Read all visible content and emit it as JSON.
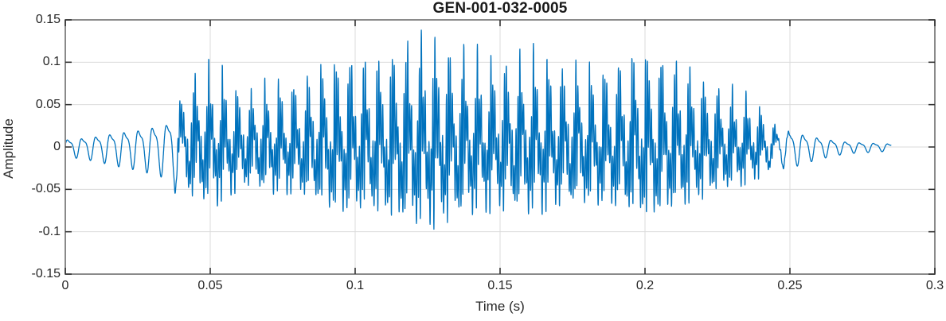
{
  "figure": {
    "background": "#ffffff"
  },
  "chart_data": {
    "type": "line",
    "title": "GEN-001-032-0005",
    "xlabel": "Time (s)",
    "ylabel": "Amplitude",
    "xlim": [
      0,
      0.3
    ],
    "ylim": [
      -0.15,
      0.15
    ],
    "grid": true,
    "legend": false,
    "x_ticks": {
      "values": [
        0,
        0.05,
        0.1,
        0.15,
        0.2,
        0.25,
        0.3
      ],
      "labels": [
        "0",
        "0.05",
        "0.1",
        "0.15",
        "0.2",
        "0.25",
        "0.3"
      ]
    },
    "y_ticks": {
      "values": [
        -0.15,
        -0.1,
        -0.05,
        0,
        0.05,
        0.1,
        0.15
      ],
      "labels": [
        "-0.15",
        "-0.1",
        "-0.05",
        "0",
        "0.05",
        "0.1",
        "0.15"
      ]
    },
    "line_color": "#0072BD",
    "axis_box_color": "#8a8a8a",
    "tick_mark_color": "#333333",
    "grid_color": "#dbdbdb",
    "text_color": "#262626",
    "signal": {
      "description": "speech-like audio waveform burst, onset ~0.04 s, sustained voicing to ~0.24 s, decaying tail ending ~0.285 s",
      "duration_s": 0.285,
      "sample_step_s": 4e-05,
      "pitch_hz": 205,
      "formant_hz": 1500,
      "mid_hz": 830,
      "amplitude_clip": 0.1465,
      "voiced_ramp_s": [
        0.036,
        0.043,
        0.238,
        0.252
      ],
      "mix": {
        "f0_weight": 0.5,
        "formant_weight": 1.15,
        "mid_weight": 0.22,
        "norm": 1.7,
        "low_h1": 0.75,
        "low_h2": 0.25,
        "pulse_floor": 0.35,
        "pulse_depth": 0.65
      },
      "shimmer": [
        [
          9.3,
          0.13,
          1.1
        ],
        [
          23.7,
          0.09,
          2.4
        ]
      ],
      "envelope_breakpoints": [
        [
          0.0,
          0.012
        ],
        [
          0.005,
          0.014
        ],
        [
          0.01,
          0.017
        ],
        [
          0.015,
          0.021
        ],
        [
          0.02,
          0.025
        ],
        [
          0.025,
          0.028
        ],
        [
          0.03,
          0.033
        ],
        [
          0.035,
          0.038
        ],
        [
          0.04,
          0.075
        ],
        [
          0.044,
          0.1
        ],
        [
          0.048,
          0.115
        ],
        [
          0.052,
          0.13
        ],
        [
          0.056,
          0.12
        ],
        [
          0.06,
          0.1
        ],
        [
          0.065,
          0.093
        ],
        [
          0.07,
          0.095
        ],
        [
          0.075,
          0.09
        ],
        [
          0.08,
          0.088
        ],
        [
          0.085,
          0.098
        ],
        [
          0.09,
          0.115
        ],
        [
          0.095,
          0.13
        ],
        [
          0.1,
          0.126
        ],
        [
          0.105,
          0.115
        ],
        [
          0.11,
          0.112
        ],
        [
          0.115,
          0.118
        ],
        [
          0.12,
          0.12
        ],
        [
          0.125,
          0.124
        ],
        [
          0.13,
          0.127
        ],
        [
          0.135,
          0.132
        ],
        [
          0.14,
          0.136
        ],
        [
          0.145,
          0.132
        ],
        [
          0.15,
          0.13
        ],
        [
          0.155,
          0.126
        ],
        [
          0.16,
          0.13
        ],
        [
          0.165,
          0.126
        ],
        [
          0.17,
          0.122
        ],
        [
          0.175,
          0.13
        ],
        [
          0.18,
          0.134
        ],
        [
          0.185,
          0.131
        ],
        [
          0.19,
          0.131
        ],
        [
          0.195,
          0.127
        ],
        [
          0.2,
          0.121
        ],
        [
          0.205,
          0.112
        ],
        [
          0.21,
          0.102
        ],
        [
          0.215,
          0.096
        ],
        [
          0.22,
          0.087
        ],
        [
          0.225,
          0.08
        ],
        [
          0.23,
          0.075
        ],
        [
          0.235,
          0.064
        ],
        [
          0.24,
          0.05
        ],
        [
          0.245,
          0.032
        ],
        [
          0.25,
          0.026
        ],
        [
          0.255,
          0.02
        ],
        [
          0.26,
          0.015
        ],
        [
          0.265,
          0.011
        ],
        [
          0.27,
          0.008
        ],
        [
          0.275,
          0.007
        ],
        [
          0.28,
          0.006
        ],
        [
          0.285,
          0.005
        ]
      ]
    }
  }
}
